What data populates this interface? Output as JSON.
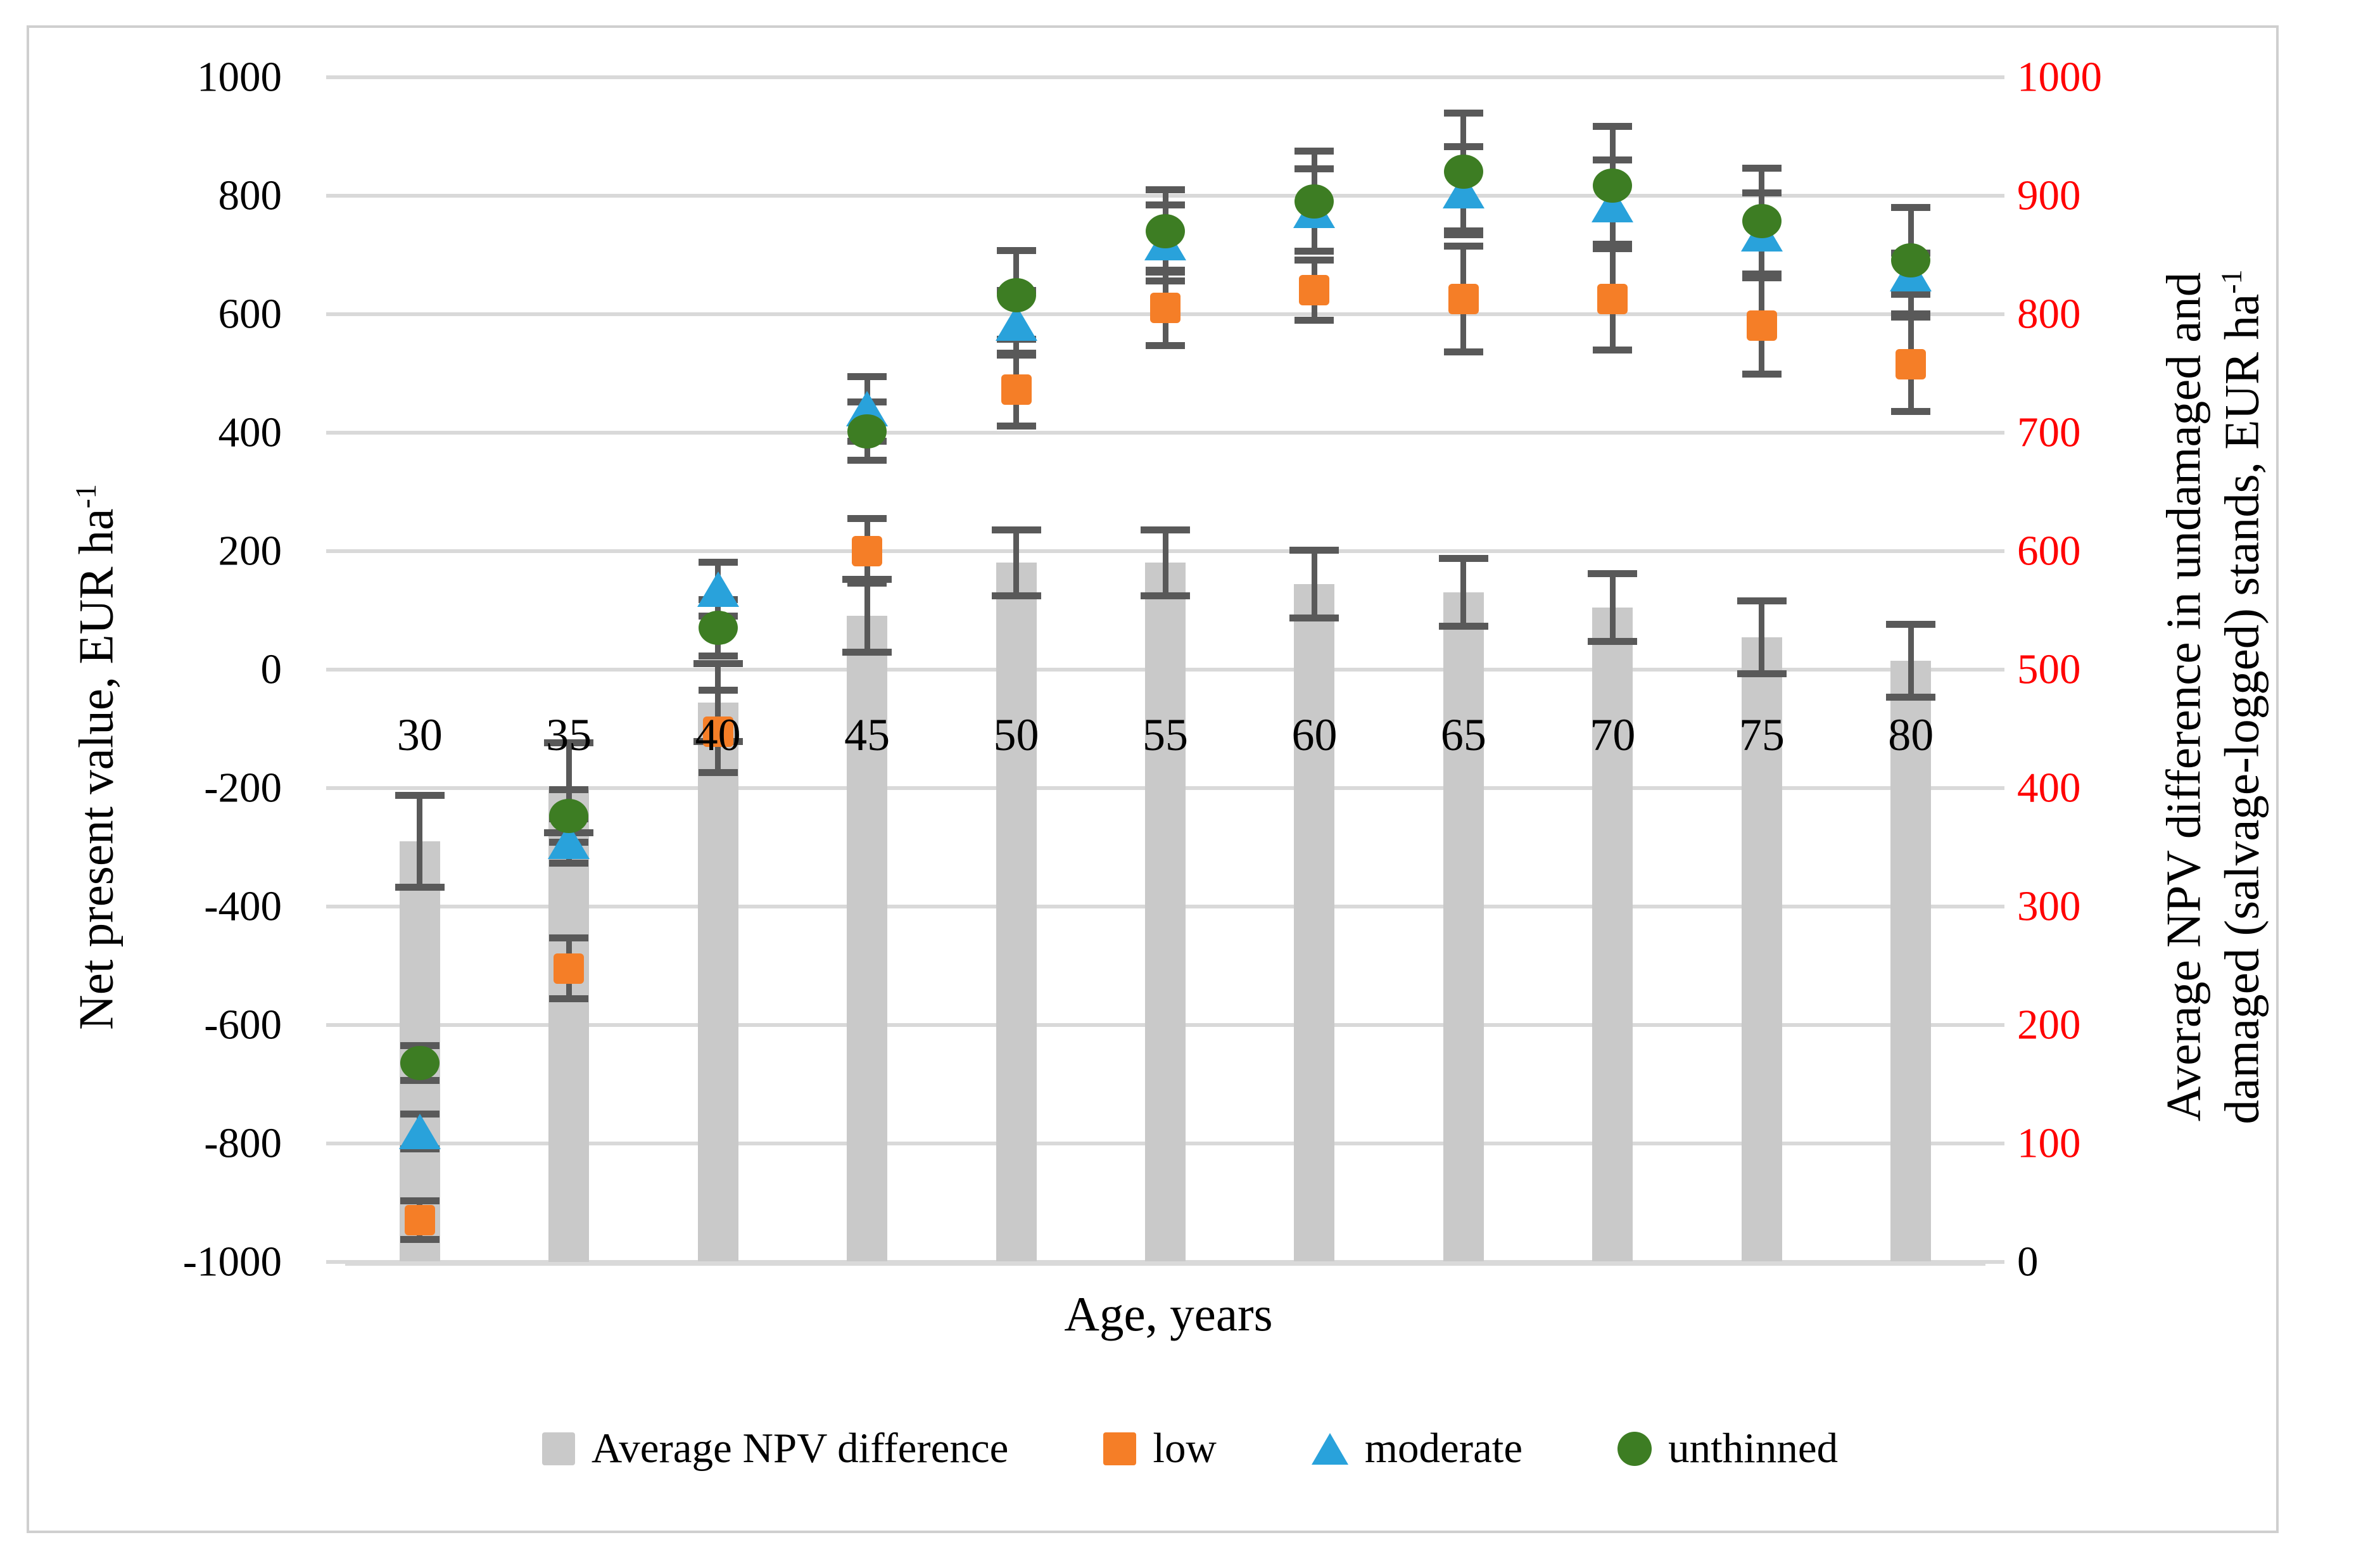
{
  "chart_data": {
    "type": "bar+scatter",
    "categories": [
      "30",
      "35",
      "40",
      "45",
      "50",
      "55",
      "60",
      "65",
      "70",
      "75",
      "80"
    ],
    "x_axis": {
      "title": "Age, years"
    },
    "left_axis": {
      "title_main": "Net present value, EUR ha",
      "title_sup": "-1",
      "min": -1000,
      "max": 1000,
      "step": 200,
      "tick_labels": [
        "1000",
        "800",
        "600",
        "400",
        "200",
        "0",
        "-200",
        "-400",
        "-600",
        "-800",
        "-1000"
      ]
    },
    "right_axis": {
      "title_line1": "Average NPV difference in undamaged and",
      "title_line2_main": "damaged (salvage-logged) stands, EUR ha",
      "title_line2_sup": "-1",
      "min": 0,
      "max": 1000,
      "step": 100,
      "tick_labels": [
        "1000",
        "900",
        "800",
        "700",
        "600",
        "500",
        "400",
        "300",
        "200",
        "100",
        "0"
      ],
      "label_color": "#ff0000",
      "zero_label_color": "#000000"
    },
    "grid_on": true,
    "grid_color": "#d9d9d9",
    "error_bar_color": "#595959",
    "legend_position": "bottom",
    "series": [
      {
        "name": "Average NPV difference",
        "type": "bar",
        "axis": "right",
        "color": "#c9c9c9",
        "values": [
          355,
          400,
          472,
          545,
          590,
          590,
          572,
          565,
          552,
          527,
          507
        ],
        "errors": [
          39,
          38,
          33,
          31,
          28,
          28,
          29,
          29,
          29,
          31,
          31
        ]
      },
      {
        "name": "low",
        "type": "square",
        "axis": "left",
        "color": "#f57e27",
        "values": [
          -930,
          -505,
          -105,
          200,
          472,
          610,
          640,
          625,
          625,
          580,
          515
        ],
        "errors": [
          33,
          52,
          70,
          55,
          62,
          64,
          51,
          90,
          86,
          82,
          80
        ]
      },
      {
        "name": "moderate",
        "type": "triangle",
        "axis": "left",
        "color": "#29a2db",
        "values": [
          -780,
          -290,
          135,
          440,
          585,
          720,
          775,
          808,
          785,
          735,
          668
        ],
        "errors": [
          30,
          38,
          46,
          55,
          55,
          65,
          70,
          75,
          75,
          70,
          35
        ]
      },
      {
        "name": "unthinned",
        "type": "circle",
        "axis": "left",
        "color": "#3d7d23",
        "values": [
          -665,
          -248,
          70,
          402,
          632,
          740,
          790,
          840,
          817,
          757,
          690
        ],
        "errors": [
          30,
          45,
          48,
          50,
          75,
          70,
          85,
          100,
          100,
          90,
          90
        ]
      }
    ]
  }
}
